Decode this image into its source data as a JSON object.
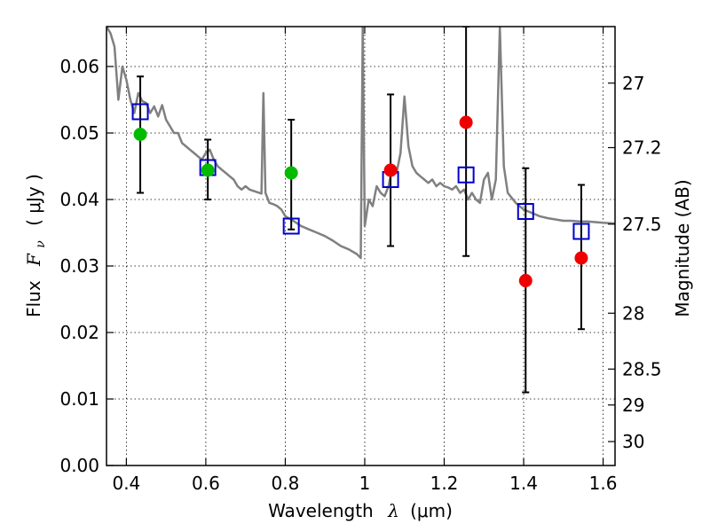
{
  "chart_data": {
    "type": "scatter",
    "xlabel": {
      "prefix": "Wavelength",
      "symbol": "λ",
      "unit": "(μm)"
    },
    "ylabel": {
      "prefix": "Flux",
      "symbol": "F",
      "subscript": "ν",
      "unit": "( μJy )"
    },
    "ylabel_right": "Magnitude (AB)",
    "xlim": [
      0.35,
      1.63
    ],
    "ylim": [
      0.0,
      0.066
    ],
    "grid": true,
    "x_ticks": [
      {
        "value": 0.4,
        "label": "0.4"
      },
      {
        "value": 0.6,
        "label": "0.6"
      },
      {
        "value": 0.8,
        "label": "0.8"
      },
      {
        "value": 1.0,
        "label": "1"
      },
      {
        "value": 1.2,
        "label": "1.2"
      },
      {
        "value": 1.4,
        "label": "1.4"
      },
      {
        "value": 1.6,
        "label": "1.6"
      }
    ],
    "y_ticks": [
      {
        "value": 0.0,
        "label": "0.00"
      },
      {
        "value": 0.01,
        "label": "0.01"
      },
      {
        "value": 0.02,
        "label": "0.02"
      },
      {
        "value": 0.03,
        "label": "0.03"
      },
      {
        "value": 0.04,
        "label": "0.04"
      },
      {
        "value": 0.05,
        "label": "0.05"
      },
      {
        "value": 0.06,
        "label": "0.06"
      }
    ],
    "right_ticks": [
      {
        "label": "27",
        "flux": 0.0575
      },
      {
        "label": "27.2",
        "flux": 0.0478
      },
      {
        "label": "27.5",
        "flux": 0.0363
      },
      {
        "label": "28",
        "flux": 0.0229
      },
      {
        "label": "28.5",
        "flux": 0.0145
      },
      {
        "label": "29",
        "flux": 0.0091
      },
      {
        "label": "30",
        "flux": 0.0036
      }
    ],
    "series": [
      {
        "kind": "line",
        "color": "#808080",
        "points": [
          [
            0.35,
            0.066
          ],
          [
            0.36,
            0.065
          ],
          [
            0.37,
            0.063
          ],
          [
            0.38,
            0.055
          ],
          [
            0.39,
            0.06
          ],
          [
            0.4,
            0.058
          ],
          [
            0.41,
            0.055
          ],
          [
            0.42,
            0.053
          ],
          [
            0.43,
            0.056
          ],
          [
            0.44,
            0.0548
          ],
          [
            0.45,
            0.0545
          ],
          [
            0.46,
            0.053
          ],
          [
            0.47,
            0.054
          ],
          [
            0.48,
            0.0525
          ],
          [
            0.49,
            0.0542
          ],
          [
            0.5,
            0.052
          ],
          [
            0.51,
            0.051
          ],
          [
            0.52,
            0.05
          ],
          [
            0.53,
            0.05
          ],
          [
            0.54,
            0.0485
          ],
          [
            0.55,
            0.048
          ],
          [
            0.56,
            0.0475
          ],
          [
            0.57,
            0.047
          ],
          [
            0.58,
            0.0465
          ],
          [
            0.59,
            0.046
          ],
          [
            0.6,
            0.047
          ],
          [
            0.61,
            0.0475
          ],
          [
            0.62,
            0.046
          ],
          [
            0.63,
            0.045
          ],
          [
            0.64,
            0.0445
          ],
          [
            0.65,
            0.044
          ],
          [
            0.66,
            0.0435
          ],
          [
            0.67,
            0.043
          ],
          [
            0.68,
            0.042
          ],
          [
            0.69,
            0.0415
          ],
          [
            0.7,
            0.042
          ],
          [
            0.71,
            0.0415
          ],
          [
            0.72,
            0.0413
          ],
          [
            0.73,
            0.0411
          ],
          [
            0.74,
            0.0409
          ],
          [
            0.745,
            0.056
          ],
          [
            0.75,
            0.041
          ],
          [
            0.76,
            0.0395
          ],
          [
            0.77,
            0.0393
          ],
          [
            0.78,
            0.039
          ],
          [
            0.79,
            0.0385
          ],
          [
            0.8,
            0.0375
          ],
          [
            0.82,
            0.0368
          ],
          [
            0.84,
            0.036
          ],
          [
            0.86,
            0.0355
          ],
          [
            0.88,
            0.035
          ],
          [
            0.9,
            0.0345
          ],
          [
            0.92,
            0.0338
          ],
          [
            0.94,
            0.033
          ],
          [
            0.96,
            0.0325
          ],
          [
            0.98,
            0.0318
          ],
          [
            0.99,
            0.0312
          ],
          [
            0.995,
            0.066
          ],
          [
            1.0,
            0.036
          ],
          [
            1.01,
            0.04
          ],
          [
            1.02,
            0.039
          ],
          [
            1.03,
            0.042
          ],
          [
            1.04,
            0.041
          ],
          [
            1.05,
            0.0405
          ],
          [
            1.06,
            0.042
          ],
          [
            1.07,
            0.045
          ],
          [
            1.08,
            0.044
          ],
          [
            1.09,
            0.047
          ],
          [
            1.1,
            0.0555
          ],
          [
            1.11,
            0.048
          ],
          [
            1.12,
            0.045
          ],
          [
            1.13,
            0.044
          ],
          [
            1.14,
            0.0435
          ],
          [
            1.15,
            0.043
          ],
          [
            1.16,
            0.0425
          ],
          [
            1.17,
            0.043
          ],
          [
            1.18,
            0.042
          ],
          [
            1.19,
            0.0425
          ],
          [
            1.2,
            0.042
          ],
          [
            1.21,
            0.0418
          ],
          [
            1.22,
            0.0415
          ],
          [
            1.23,
            0.042
          ],
          [
            1.24,
            0.041
          ],
          [
            1.25,
            0.0415
          ],
          [
            1.26,
            0.04
          ],
          [
            1.27,
            0.041
          ],
          [
            1.28,
            0.04
          ],
          [
            1.29,
            0.0395
          ],
          [
            1.3,
            0.043
          ],
          [
            1.31,
            0.044
          ],
          [
            1.32,
            0.04
          ],
          [
            1.33,
            0.043
          ],
          [
            1.34,
            0.066
          ],
          [
            1.35,
            0.045
          ],
          [
            1.36,
            0.041
          ],
          [
            1.38,
            0.0395
          ],
          [
            1.4,
            0.0385
          ],
          [
            1.42,
            0.038
          ],
          [
            1.44,
            0.0375
          ],
          [
            1.46,
            0.0372
          ],
          [
            1.48,
            0.037
          ],
          [
            1.5,
            0.0368
          ],
          [
            1.52,
            0.0368
          ],
          [
            1.54,
            0.0367
          ],
          [
            1.56,
            0.0367
          ],
          [
            1.58,
            0.0366
          ],
          [
            1.6,
            0.0365
          ],
          [
            1.63,
            0.0364
          ]
        ]
      },
      {
        "kind": "errorbar",
        "color": "#000000",
        "points": [
          {
            "x": 0.435,
            "low": 0.041,
            "high": 0.0585
          },
          {
            "x": 0.605,
            "low": 0.04,
            "high": 0.049
          },
          {
            "x": 0.815,
            "low": 0.0355,
            "high": 0.052
          },
          {
            "x": 1.065,
            "low": 0.033,
            "high": 0.0558
          },
          {
            "x": 1.255,
            "low": 0.0315,
            "high": 0.066
          },
          {
            "x": 1.405,
            "low": 0.011,
            "high": 0.0447
          },
          {
            "x": 1.545,
            "low": 0.0205,
            "high": 0.0422
          }
        ]
      },
      {
        "kind": "marker-square",
        "color": "#0000cc",
        "points": [
          [
            0.435,
            0.0532
          ],
          [
            0.605,
            0.0448
          ],
          [
            0.815,
            0.036
          ],
          [
            1.065,
            0.043
          ],
          [
            1.255,
            0.0437
          ],
          [
            1.405,
            0.0382
          ],
          [
            1.545,
            0.0352
          ]
        ]
      },
      {
        "kind": "marker-circle",
        "color": "#00bb00",
        "points": [
          [
            0.435,
            0.0498
          ],
          [
            0.605,
            0.0444
          ],
          [
            0.815,
            0.044
          ]
        ]
      },
      {
        "kind": "marker-circle",
        "color": "#ee0000",
        "points": [
          [
            1.065,
            0.0444
          ],
          [
            1.255,
            0.0516
          ],
          [
            1.405,
            0.0278
          ],
          [
            1.545,
            0.0312
          ]
        ]
      }
    ]
  }
}
